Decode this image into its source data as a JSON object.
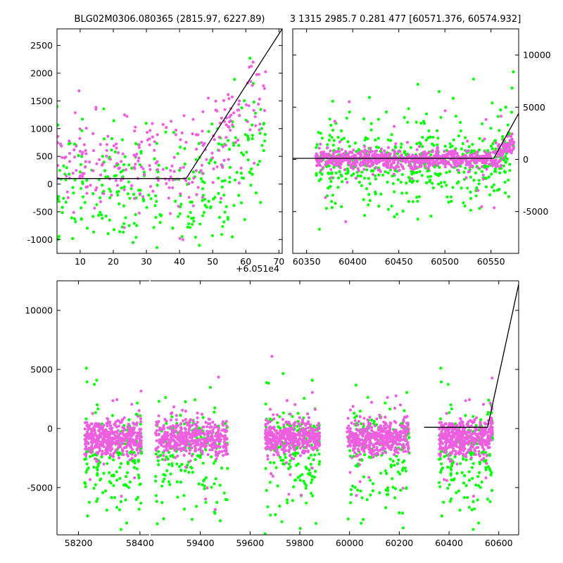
{
  "titles": {
    "left": "BLG02M0306.080365 (2815.97, 6227.89)",
    "right": "3 1315 2985.7 0.281 477 [60571.376, 60574.932]"
  },
  "colors": {
    "series_a": "#ee5ee0",
    "series_b": "#00ff00",
    "model_line": "#000000"
  },
  "chart_data": [
    {
      "type": "scatter",
      "panel": "top-left zoom (last season, x shown as offset)",
      "x_offset_label": "+6.051e4",
      "x_offset": 60510,
      "xlim": [
        3,
        71
      ],
      "ylim": [
        -1250,
        2800
      ],
      "xticks": [
        10,
        20,
        30,
        40,
        50,
        60,
        70
      ],
      "yticks": [
        -1000,
        -500,
        0,
        500,
        1000,
        1500,
        2000,
        2500
      ],
      "series": [
        {
          "color": "#ee5ee0",
          "x_range": [
            3,
            66
          ],
          "y_center": 300,
          "y_scatter": 450,
          "rising_after": 45,
          "points": 260
        },
        {
          "color": "#00ff00",
          "x_range": [
            3,
            66
          ],
          "y_center": -100,
          "y_scatter": 550,
          "rising_after": 50,
          "points": 300
        }
      ],
      "model": [
        [
          3,
          100
        ],
        [
          42,
          100
        ],
        [
          71,
          2800
        ]
      ]
    },
    {
      "type": "scatter",
      "panel": "top-right (last season, full amplitude)",
      "xlim": [
        60335,
        60580
      ],
      "ylim": [
        -9000,
        12500
      ],
      "xticks": [
        60350,
        60400,
        60450,
        60500,
        60550
      ],
      "yticks": [
        -5000,
        0,
        5000,
        10000
      ],
      "y_axis_side": "right",
      "series": [
        {
          "color": "#ee5ee0",
          "x_range": [
            60360,
            60575
          ],
          "y_center": 0,
          "y_scatter": 450,
          "points": 900
        },
        {
          "color": "#00ff00",
          "x_range": [
            60360,
            60575
          ],
          "y_center": -300,
          "y_scatter": 3000,
          "points": 500
        }
      ],
      "model": [
        [
          60335,
          100
        ],
        [
          60553,
          100
        ],
        [
          60580,
          4400
        ]
      ]
    },
    {
      "type": "scatter",
      "panel": "bottom (full light curve, broken x-axis)",
      "xlim_left": [
        58130,
        58430
      ],
      "xlim_right": [
        59200,
        60680
      ],
      "ylim": [
        -9000,
        12500
      ],
      "xticks_left": [
        58200,
        58400
      ],
      "xticks_right": [
        59400,
        59600,
        59800,
        60000,
        60200,
        60400,
        60600
      ],
      "yticks": [
        -5000,
        0,
        5000,
        10000
      ],
      "seasons": [
        {
          "x_range": [
            58220,
            58405
          ]
        },
        {
          "x_range": [
            59220,
            59510
          ]
        },
        {
          "x_range": [
            59660,
            59880
          ]
        },
        {
          "x_range": [
            59990,
            60240
          ]
        },
        {
          "x_range": [
            60360,
            60575
          ]
        }
      ],
      "series": [
        {
          "color": "#ee5ee0",
          "y_center": -800,
          "y_scatter": 700,
          "points_per_season": 450
        },
        {
          "color": "#00ff00",
          "y_center": -2500,
          "y_scatter": 3200,
          "points_per_season": 170
        }
      ],
      "model": [
        [
          60300,
          100
        ],
        [
          60555,
          100
        ],
        [
          60680,
          12200
        ]
      ]
    }
  ]
}
